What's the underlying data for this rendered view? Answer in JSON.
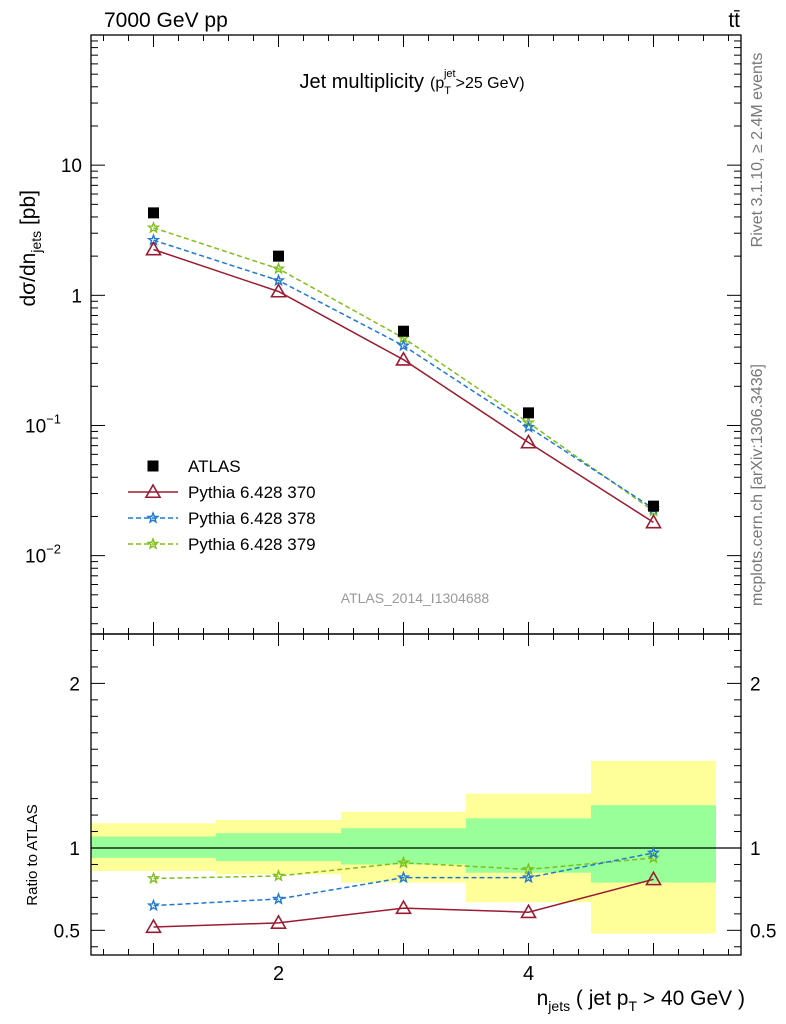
{
  "header": {
    "energy_label": "7000 GeV pp",
    "process_label": "tt̄"
  },
  "side_labels": {
    "rivet": "Rivet 3.1.10, ≥ 2.4M events",
    "mcplots": "mcplots.cern.ch [arXiv:1306.3436]"
  },
  "chart_data": {
    "type": "line",
    "title": "Jet multiplicity",
    "title_cut": {
      "base": "(p",
      "sub": "T",
      "sup": "jet",
      "tail": ">25 GeV)"
    },
    "analysis_id": "ATLAS_2014_I1304688",
    "xlabel": {
      "base": "n",
      "sub": "jets",
      "rest": " ( jet p",
      "sub2": "T",
      "tail": " > 40 GeV )"
    },
    "ylabel": {
      "base": "dσ/dn",
      "sub": "jets",
      "tail": " [pb]"
    },
    "xlim": [
      0.5,
      5.7
    ],
    "x_ticks": [
      2,
      4
    ],
    "main_panel": {
      "yscale": "log",
      "ylim": [
        0.0025,
        100
      ],
      "y_ticks": [
        {
          "value": 10,
          "label": "10"
        },
        {
          "value": 1,
          "label": "1"
        },
        {
          "value": 0.1,
          "label": "10",
          "exp": "−1"
        },
        {
          "value": 0.01,
          "label": "10",
          "exp": "−2"
        }
      ],
      "legend_position": "lower-left",
      "series": [
        {
          "name": "ATLAS",
          "color": "#000000",
          "marker": "square",
          "line": "none",
          "x": [
            1,
            2,
            3,
            4,
            5
          ],
          "y": [
            4.3,
            2.0,
            0.53,
            0.125,
            0.024
          ]
        },
        {
          "name": "Pythia 6.428 370",
          "color": "#9b1b30",
          "marker": "triangle-open",
          "line": "solid",
          "x": [
            1,
            2,
            3,
            4,
            5
          ],
          "y": [
            2.25,
            1.07,
            0.32,
            0.074,
            0.018
          ]
        },
        {
          "name": "Pythia 6.428 378",
          "color": "#1f78d2",
          "marker": "star",
          "line": "dashed",
          "x": [
            1,
            2,
            3,
            4,
            5
          ],
          "y": [
            2.65,
            1.3,
            0.41,
            0.097,
            0.023
          ]
        },
        {
          "name": "Pythia 6.428 379",
          "color": "#7fbf1a",
          "marker": "star",
          "line": "dashed",
          "x": [
            1,
            2,
            3,
            4,
            5
          ],
          "y": [
            3.3,
            1.6,
            0.47,
            0.105,
            0.022
          ]
        }
      ]
    },
    "ratio_panel": {
      "ylabel": "Ratio to ATLAS",
      "ylim": [
        0.35,
        2.3
      ],
      "y_ticks": [
        {
          "value": 2,
          "label": "2"
        },
        {
          "value": 1,
          "label": "1"
        },
        {
          "value": 0.5,
          "label": "0.5"
        }
      ],
      "reference": 1,
      "bands": [
        {
          "x0": 0.5,
          "x1": 1.5,
          "yellow": [
            0.86,
            1.15
          ],
          "green": [
            0.94,
            1.07
          ]
        },
        {
          "x0": 1.5,
          "x1": 2.5,
          "yellow": [
            0.84,
            1.17
          ],
          "green": [
            0.92,
            1.09
          ]
        },
        {
          "x0": 2.5,
          "x1": 3.5,
          "yellow": [
            0.79,
            1.22
          ],
          "green": [
            0.9,
            1.12
          ]
        },
        {
          "x0": 3.5,
          "x1": 4.5,
          "yellow": [
            0.67,
            1.33
          ],
          "green": [
            0.85,
            1.18
          ]
        },
        {
          "x0": 4.5,
          "x1": 5.5,
          "yellow": [
            0.48,
            1.53
          ],
          "green": [
            0.79,
            1.26
          ]
        }
      ],
      "series": [
        {
          "name": "Pythia 6.428 370",
          "color": "#9b1b30",
          "marker": "triangle-open",
          "line": "solid",
          "x": [
            1,
            2,
            3,
            4,
            5
          ],
          "y": [
            0.52,
            0.545,
            0.635,
            0.61,
            0.81
          ]
        },
        {
          "name": "Pythia 6.428 378",
          "color": "#1f78d2",
          "marker": "star",
          "line": "dashed",
          "x": [
            1,
            2,
            3,
            4,
            5
          ],
          "y": [
            0.65,
            0.69,
            0.82,
            0.82,
            0.97
          ]
        },
        {
          "name": "Pythia 6.428 379",
          "color": "#7fbf1a",
          "marker": "star",
          "line": "dashed",
          "x": [
            1,
            2,
            3,
            4,
            5
          ],
          "y": [
            0.815,
            0.83,
            0.91,
            0.87,
            0.94
          ]
        }
      ]
    }
  }
}
